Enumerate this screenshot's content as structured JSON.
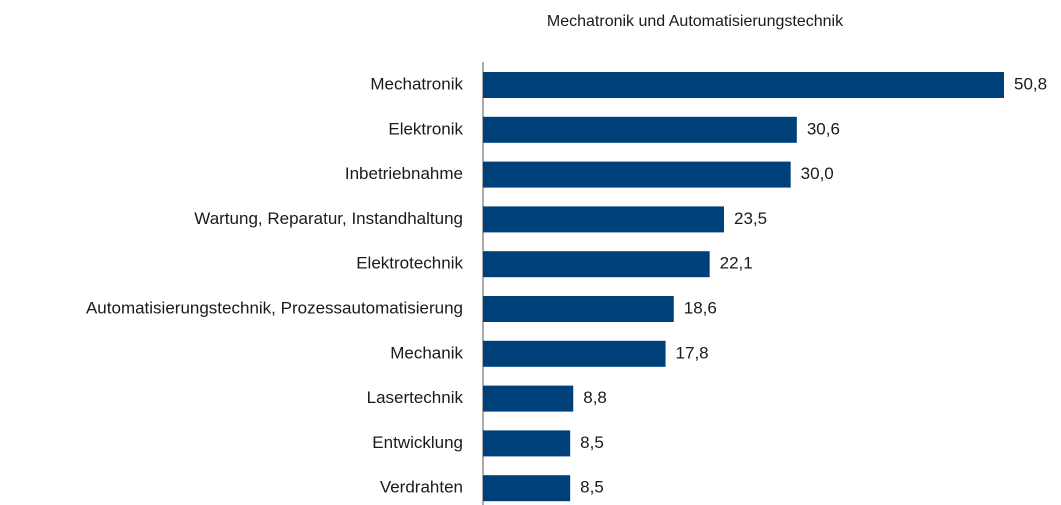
{
  "chart_data": {
    "type": "bar",
    "orientation": "horizontal",
    "title": "Mechatronik und Automatisierungstechnik",
    "categories": [
      "Mechatronik",
      "Elektronik",
      "Inbetriebnahme",
      "Wartung, Reparatur, Instandhaltung",
      "Elektrotechnik",
      "Automatisierungstechnik, Prozessautomatisierung",
      "Mechanik",
      "Lasertechnik",
      "Entwicklung",
      "Verdrahten"
    ],
    "values": [
      50.8,
      30.6,
      30.0,
      23.5,
      22.1,
      18.6,
      17.8,
      8.8,
      8.5,
      8.5
    ],
    "value_labels": [
      "50,8",
      "30,6",
      "30,0",
      "23,5",
      "22,1",
      "18,6",
      "17,8",
      "8,8",
      "8,5",
      "8,5"
    ],
    "color": "#00407a"
  }
}
